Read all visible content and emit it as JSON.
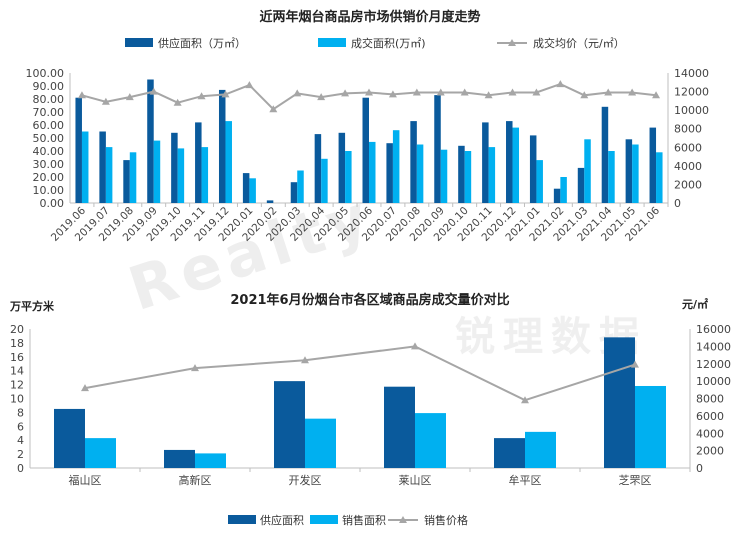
{
  "colors": {
    "supply": "#0a5a9c",
    "deal": "#00b0f0",
    "price": "#a6a6a6",
    "axis": "#bfbfbf",
    "grid": "#d9d9d9"
  },
  "watermark": {
    "text_en": "Realty",
    "text_cn": "锐理数据"
  },
  "chart_data": [
    {
      "type": "bar",
      "title": "近两年烟台商品房市场供销价月度走势",
      "legend": [
        "供应面积（万㎡）",
        "成交面积(万㎡)",
        "成交均价（元/㎡）"
      ],
      "categories": [
        "2019.06",
        "2019.07",
        "2019.08",
        "2019.09",
        "2019.10",
        "2019.11",
        "2019.12",
        "2020.01",
        "2020.02",
        "2020.03",
        "2020.04",
        "2020.05",
        "2020.06",
        "2020.07",
        "2020.08",
        "2020.09",
        "2020.10",
        "2020.11",
        "2020.12",
        "2021.01",
        "2021.02",
        "2021.03",
        "2021.04",
        "2021.05",
        "2021.06"
      ],
      "series": [
        {
          "name": "供应面积（万㎡）",
          "type": "bar",
          "axis": "left",
          "values": [
            81,
            55,
            33,
            95,
            54,
            62,
            87,
            23,
            2,
            16,
            53,
            54,
            81,
            46,
            63,
            83,
            44,
            62,
            63,
            52,
            11,
            27,
            74,
            49,
            58
          ]
        },
        {
          "name": "成交面积(万㎡)",
          "type": "bar",
          "axis": "left",
          "values": [
            55,
            43,
            39,
            48,
            42,
            43,
            63,
            19,
            0,
            25,
            34,
            40,
            47,
            56,
            45,
            41,
            40,
            43,
            58,
            33,
            20,
            49,
            40,
            45,
            39
          ]
        },
        {
          "name": "成交均价（元/㎡）",
          "type": "line",
          "axis": "right",
          "values": [
            11600,
            10900,
            11400,
            12000,
            10800,
            11500,
            11700,
            12700,
            10100,
            11800,
            11400,
            11800,
            11900,
            11700,
            11900,
            11900,
            11900,
            11600,
            11900,
            11900,
            12800,
            11600,
            11900,
            11900,
            11600
          ]
        }
      ],
      "ylim": [
        0,
        100
      ],
      "y_ticks": [
        "0.00",
        "10.00",
        "20.00",
        "30.00",
        "40.00",
        "50.00",
        "60.00",
        "70.00",
        "80.00",
        "90.00",
        "100.00"
      ],
      "y2lim": [
        0,
        14000
      ],
      "y2_ticks": [
        "0",
        "2000",
        "4000",
        "6000",
        "8000",
        "10000",
        "12000",
        "14000"
      ],
      "legend_position": "top"
    },
    {
      "type": "bar",
      "title": "2021年6月份烟台市各区域商品房成交量价对比",
      "ylabel": "万平方米",
      "y2label": "元/㎡",
      "legend": [
        "供应面积",
        "销售面积",
        "销售价格"
      ],
      "categories": [
        "福山区",
        "高新区",
        "开发区",
        "莱山区",
        "牟平区",
        "芝罘区"
      ],
      "series": [
        {
          "name": "供应面积",
          "type": "bar",
          "axis": "left",
          "values": [
            8.5,
            2.6,
            12.5,
            11.7,
            4.3,
            18.8
          ]
        },
        {
          "name": "销售面积",
          "type": "bar",
          "axis": "left",
          "values": [
            4.3,
            2.1,
            7.1,
            7.9,
            5.2,
            11.8
          ]
        },
        {
          "name": "销售价格",
          "type": "line",
          "axis": "right",
          "values": [
            9200,
            11500,
            12400,
            14000,
            7800,
            11900
          ]
        }
      ],
      "ylim": [
        0,
        20
      ],
      "y_ticks": [
        "0",
        "2",
        "4",
        "6",
        "8",
        "10",
        "12",
        "14",
        "16",
        "18",
        "20"
      ],
      "y2lim": [
        0,
        16000
      ],
      "y2_ticks": [
        "0",
        "2000",
        "4000",
        "6000",
        "8000",
        "10000",
        "12000",
        "14000",
        "16000"
      ],
      "legend_position": "bottom"
    }
  ]
}
